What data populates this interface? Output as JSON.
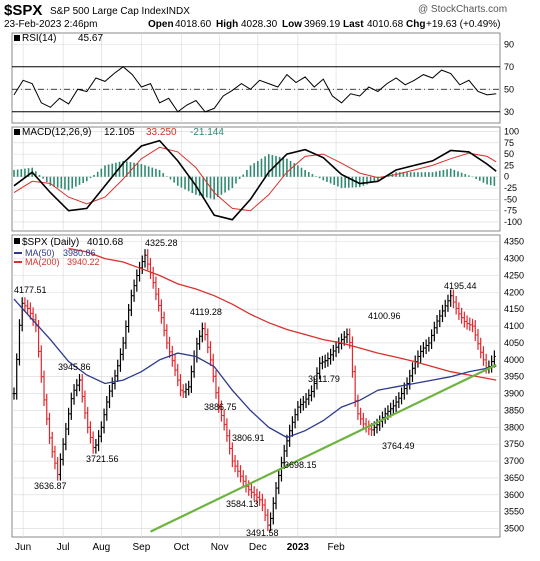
{
  "header": {
    "symbol": "$SPX",
    "name": "S&P 500 Large Cap Index",
    "exchange": "INDX",
    "date": "23-Feb-2023 2:46pm",
    "open_label": "Open",
    "open": "4018.60",
    "high_label": "High",
    "high": "4028.30",
    "low_label": "Low",
    "low": "3969.19",
    "last_label": "Last",
    "last": "4010.68",
    "chg_label": "Chg",
    "chg": "+19.63 (+0.49%)",
    "watermark": "@ StockCharts.com"
  },
  "colors": {
    "price_up": "#000000",
    "price_down": "#e2262d",
    "ma50": "#2d3a8c",
    "ma200": "#d9312a",
    "trendline": "#6cb43f",
    "macd": "#000000",
    "signal": "#d9312a",
    "histogram": "#2f8a72",
    "grid": "#d8d8d8"
  },
  "chart_data": [
    {
      "type": "line",
      "panel": "RSI",
      "title": "RSI(14)",
      "last_value": "45.67",
      "ylim": [
        20,
        100
      ],
      "ticks": [
        "90",
        "70",
        "50",
        "30"
      ],
      "reference_lines": [
        70,
        30
      ],
      "midline": 50,
      "x_months": [
        "Jun",
        "Jul",
        "Aug",
        "Sep",
        "Oct",
        "Nov",
        "Dec",
        "2023",
        "Feb"
      ],
      "series": [
        {
          "x": [
            0,
            5,
            10,
            15,
            20,
            25,
            30,
            35,
            40,
            45,
            50,
            55,
            60,
            65,
            70,
            75,
            80,
            85,
            90,
            95,
            100,
            105,
            110,
            115,
            120,
            125,
            130,
            135,
            140,
            145,
            150,
            155,
            160,
            165,
            170,
            175,
            180,
            185,
            190,
            195,
            200,
            205,
            210,
            215,
            220,
            225,
            230,
            235,
            240,
            245,
            250,
            255,
            260,
            265
          ],
          "values": [
            45,
            58,
            55,
            38,
            34,
            42,
            37,
            50,
            48,
            60,
            57,
            64,
            70,
            63,
            52,
            55,
            38,
            42,
            30,
            36,
            40,
            30,
            33,
            44,
            49,
            55,
            50,
            58,
            55,
            52,
            63,
            56,
            61,
            52,
            59,
            44,
            38,
            46,
            44,
            52,
            48,
            55,
            60,
            54,
            58,
            63,
            60,
            67,
            64,
            54,
            58,
            48,
            45,
            46
          ]
        }
      ]
    },
    {
      "type": "line",
      "panel": "MACD",
      "title": "MACD(12,26,9)",
      "legend": [
        "12.105",
        "33.250",
        "-21.144"
      ],
      "ylim": [
        -120,
        110
      ],
      "ticks": [
        "100",
        "75",
        "50",
        "25",
        "0",
        "-25",
        "-50",
        "-75",
        "-100"
      ],
      "x_months": [
        "Jun",
        "Jul",
        "Aug",
        "Sep",
        "Oct",
        "Nov",
        "Dec",
        "2023",
        "Feb"
      ],
      "x": [
        0,
        10,
        20,
        30,
        40,
        50,
        60,
        70,
        80,
        90,
        100,
        110,
        120,
        130,
        140,
        150,
        160,
        170,
        180,
        190,
        200,
        210,
        220,
        230,
        240,
        250,
        260,
        265
      ],
      "series": [
        {
          "name": "MACD",
          "values": [
            -20,
            10,
            -35,
            -75,
            -70,
            -20,
            30,
            68,
            80,
            35,
            -20,
            -85,
            -95,
            -50,
            10,
            50,
            60,
            42,
            5,
            -15,
            -10,
            15,
            25,
            35,
            58,
            55,
            28,
            12
          ]
        },
        {
          "name": "Signal",
          "values": [
            -35,
            -10,
            -15,
            -45,
            -60,
            -45,
            -5,
            40,
            65,
            55,
            20,
            -35,
            -70,
            -75,
            -40,
            10,
            45,
            50,
            30,
            8,
            -2,
            5,
            15,
            25,
            40,
            52,
            45,
            33
          ]
        }
      ],
      "histogram_x": [
        0,
        10,
        20,
        30,
        40,
        50,
        60,
        70,
        80,
        90,
        100,
        110,
        120,
        130,
        140,
        150,
        160,
        170,
        180,
        190,
        200,
        210,
        220,
        230,
        240,
        250,
        260,
        265
      ],
      "histogram_values": [
        15,
        20,
        -20,
        -30,
        -10,
        25,
        35,
        28,
        15,
        -20,
        -40,
        -50,
        -25,
        25,
        50,
        40,
        15,
        -8,
        -25,
        -23,
        -8,
        10,
        10,
        10,
        18,
        3,
        -17,
        -21
      ]
    },
    {
      "type": "candlestick",
      "panel": "Price",
      "title": "$SPX (Daily)",
      "last_value": "4010.68",
      "legend": [
        {
          "name": "MA(50)",
          "value": "3980.86"
        },
        {
          "name": "MA(200)",
          "value": "3940.22"
        }
      ],
      "ylim": [
        3475,
        4370
      ],
      "ticks": [
        "4350",
        "4300",
        "4250",
        "4200",
        "4150",
        "4100",
        "4050",
        "4000",
        "3950",
        "3900",
        "3850",
        "3800",
        "3750",
        "3700",
        "3650",
        "3600",
        "3550",
        "3500"
      ],
      "x_months": [
        "Jun",
        "Jul",
        "Aug",
        "Sep",
        "Oct",
        "Nov",
        "Dec",
        "2023",
        "Feb"
      ],
      "annotations": [
        "4177.51",
        "4325.28",
        "4119.28",
        "3945.86",
        "3886.75",
        "3806.91",
        "3911.79",
        "4100.96",
        "4195.44",
        "3636.87",
        "3721.56",
        "3584.13",
        "3491.58",
        "3698.15",
        "3764.49"
      ],
      "price_path": {
        "x": [
          0,
          4,
          8,
          12,
          16,
          20,
          24,
          28,
          32,
          36,
          40,
          44,
          48,
          52,
          56,
          60,
          64,
          68,
          72,
          76,
          80,
          84,
          88,
          92,
          96,
          100,
          104,
          108,
          112,
          116,
          120,
          124,
          128,
          132,
          136,
          140,
          144,
          148,
          152,
          156,
          160,
          164,
          168,
          172,
          176,
          180,
          184,
          188,
          192,
          196,
          200,
          204,
          208,
          212,
          216,
          220,
          224,
          228,
          232,
          236,
          240,
          244,
          248,
          252,
          256,
          260,
          264
        ],
        "values": [
          3900,
          4170,
          4150,
          4100,
          3900,
          3750,
          3660,
          3780,
          3900,
          3940,
          3810,
          3730,
          3800,
          3900,
          3960,
          4050,
          4180,
          4260,
          4310,
          4240,
          4150,
          4050,
          3980,
          3900,
          3920,
          4040,
          4100,
          4000,
          3870,
          3800,
          3700,
          3660,
          3620,
          3600,
          3580,
          3500,
          3620,
          3720,
          3800,
          3860,
          3880,
          3910,
          3990,
          4000,
          4030,
          4060,
          4080,
          3850,
          3810,
          3790,
          3810,
          3840,
          3860,
          3890,
          3930,
          3990,
          4030,
          4050,
          4110,
          4150,
          4190,
          4140,
          4110,
          4100,
          4030,
          3970,
          4010
        ]
      },
      "ma50": {
        "x": [
          0,
          10,
          20,
          30,
          40,
          50,
          60,
          70,
          80,
          90,
          100,
          110,
          120,
          130,
          140,
          150,
          160,
          170,
          180,
          190,
          200,
          210,
          220,
          230,
          240,
          250,
          260,
          265
        ],
        "values": [
          4180,
          4120,
          4060,
          3995,
          3955,
          3930,
          3940,
          3965,
          4000,
          4020,
          4010,
          3980,
          3910,
          3850,
          3800,
          3770,
          3790,
          3820,
          3860,
          3880,
          3910,
          3920,
          3930,
          3940,
          3950,
          3965,
          3975,
          3981
        ]
      },
      "ma200": {
        "x": [
          30,
          40,
          50,
          60,
          70,
          80,
          90,
          100,
          110,
          120,
          130,
          140,
          150,
          160,
          170,
          180,
          190,
          200,
          210,
          220,
          230,
          240,
          250,
          260,
          265
        ],
        "values": [
          4330,
          4320,
          4300,
          4290,
          4270,
          4250,
          4225,
          4210,
          4190,
          4165,
          4135,
          4110,
          4090,
          4075,
          4060,
          4050,
          4035,
          4020,
          4008,
          3995,
          3980,
          3965,
          3955,
          3945,
          3940
        ]
      },
      "trendline": {
        "x": [
          75,
          265
        ],
        "values": [
          3491,
          3985
        ]
      }
    }
  ]
}
